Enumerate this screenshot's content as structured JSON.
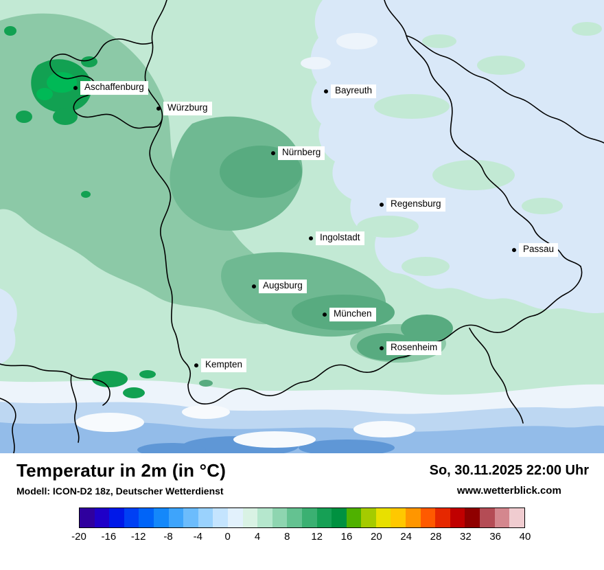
{
  "map": {
    "cities": [
      {
        "name": "Aschaffenburg"
      },
      {
        "name": "Würzburg"
      },
      {
        "name": "Bayreuth"
      },
      {
        "name": "Nürnberg"
      },
      {
        "name": "Regensburg"
      },
      {
        "name": "Ingolstadt"
      },
      {
        "name": "Passau"
      },
      {
        "name": "Augsburg"
      },
      {
        "name": "München"
      },
      {
        "name": "Rosenheim"
      },
      {
        "name": "Kempten"
      }
    ]
  },
  "footer": {
    "title": "Temperatur in 2m (in °C)",
    "model_line": "Modell: ICON-D2 18z, Deutscher Wetterdienst",
    "datetime": "So, 30.11.2025 22:00 Uhr",
    "website": "www.wetterblick.com"
  },
  "legend": {
    "unit": "°C",
    "min": -20,
    "max": 40,
    "ticks": [
      "-20",
      "-16",
      "-12",
      "-8",
      "-4",
      "0",
      "4",
      "8",
      "12",
      "16",
      "20",
      "24",
      "28",
      "32",
      "36",
      "40"
    ],
    "colors": [
      "#2f009e",
      "#1f00c8",
      "#0018e8",
      "#0040f4",
      "#0064f8",
      "#1488fa",
      "#3ea4fb",
      "#6cbcfc",
      "#9ad2fd",
      "#c4e4fe",
      "#e2f1fc",
      "#d9f2e4",
      "#b5e7cd",
      "#8ed5b0",
      "#64c291",
      "#3bb072",
      "#16a055",
      "#009140",
      "#4fb100",
      "#a5cb00",
      "#e8e000",
      "#ffc800",
      "#ff9600",
      "#ff5a00",
      "#e62800",
      "#c00000",
      "#8f0000",
      "#b44c55",
      "#d4878e",
      "#f0ccd0"
    ]
  },
  "palette": {
    "mint": "#c2e9d4",
    "green-mid": "#8cc9a7",
    "green-dark": "#6fb992",
    "green-dark2": "#58ab80",
    "green-deep": "#12a152",
    "green-bright": "#00b956",
    "blue-pale": "#d9e8f8",
    "pale": "#edf4fb",
    "alp1": "#bdd7f2",
    "alp2": "#93bce9",
    "alp3": "#5f97d6",
    "snow": "#f7fafd",
    "border": "#000000"
  }
}
